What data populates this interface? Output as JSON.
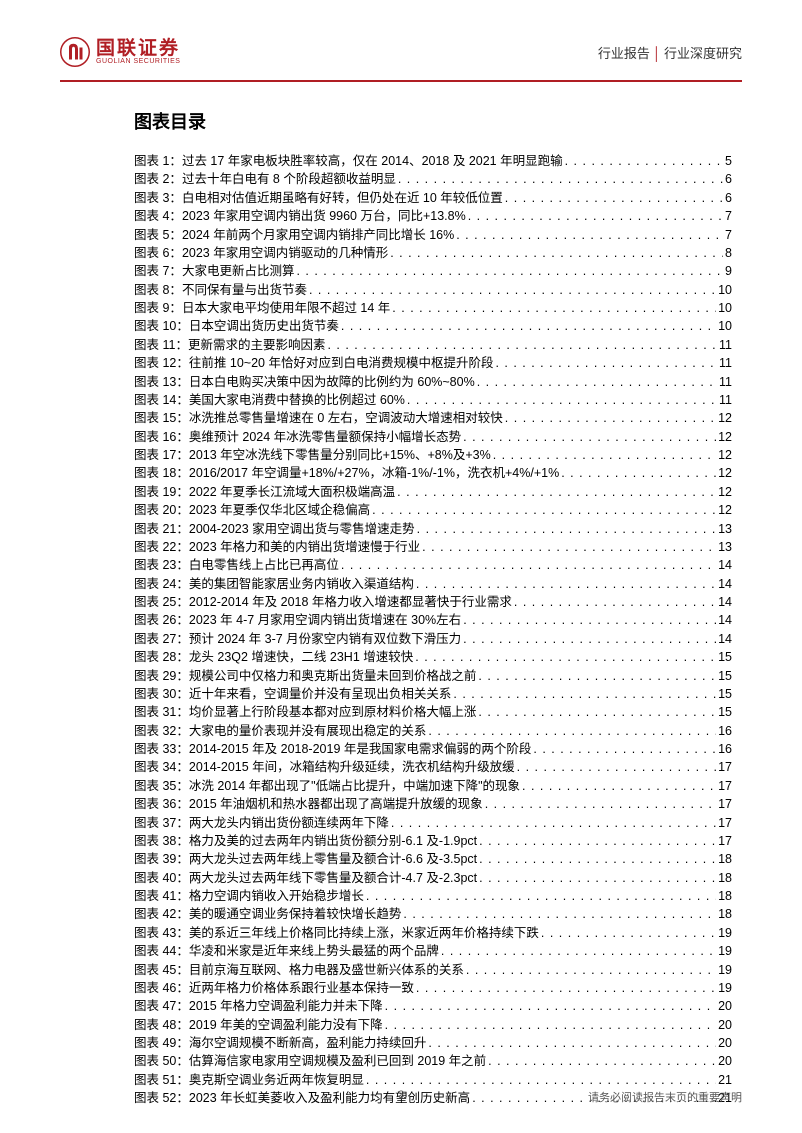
{
  "header": {
    "logo_cn": "国联证券",
    "logo_en": "GUOLIAN SECURITIES",
    "right_left": "行业报告",
    "right_right": "行业深度研究"
  },
  "section_title": "图表目录",
  "toc": [
    {
      "n": "1",
      "t": "过去 17 年家电板块胜率较高，仅在 2014、2018 及 2021 年明显跑输",
      "p": "5"
    },
    {
      "n": "2",
      "t": "过去十年白电有 8 个阶段超额收益明显",
      "p": "6"
    },
    {
      "n": "3",
      "t": "白电相对估值近期虽略有好转，但仍处在近 10 年较低位置",
      "p": "6"
    },
    {
      "n": "4",
      "t": "2023 年家用空调内销出货 9960 万台，同比+13.8%",
      "p": "7"
    },
    {
      "n": "5",
      "t": "2024 年前两个月家用空调内销排产同比增长 16%",
      "p": "7"
    },
    {
      "n": "6",
      "t": "2023 年家用空调内销驱动的几种情形",
      "p": "8"
    },
    {
      "n": "7",
      "t": "大家电更新占比测算",
      "p": "9"
    },
    {
      "n": "8",
      "t": "不同保有量与出货节奏",
      "p": "10"
    },
    {
      "n": "9",
      "t": "日本大家电平均使用年限不超过 14 年",
      "p": "10"
    },
    {
      "n": "10",
      "t": "日本空调出货历史出货节奏",
      "p": "10"
    },
    {
      "n": "11",
      "t": "更新需求的主要影响因素",
      "p": "11"
    },
    {
      "n": "12",
      "t": "往前推 10~20 年恰好对应到白电消费规模中枢提升阶段",
      "p": "11"
    },
    {
      "n": "13",
      "t": "日本白电购买决策中因为故障的比例约为 60%~80%",
      "p": "11"
    },
    {
      "n": "14",
      "t": "美国大家电消费中替换的比例超过 60%",
      "p": "11"
    },
    {
      "n": "15",
      "t": "冰洗推总零售量增速在 0 左右，空调波动大增速相对较快",
      "p": "12"
    },
    {
      "n": "16",
      "t": "奥维预计 2024 年冰洗零售量额保持小幅增长态势",
      "p": "12"
    },
    {
      "n": "17",
      "t": "2013 年空冰洗线下零售量分别同比+15%、+8%及+3%",
      "p": "12"
    },
    {
      "n": "18",
      "t": "2016/2017 年空调量+18%/+27%，冰箱-1%/-1%，洗衣机+4%/+1%",
      "p": "12"
    },
    {
      "n": "19",
      "t": "2022 年夏季长江流域大面积极端高温",
      "p": "12"
    },
    {
      "n": "20",
      "t": "2023 年夏季仅华北区域企稳偏高",
      "p": "12"
    },
    {
      "n": "21",
      "t": "2004-2023 家用空调出货与零售增速走势",
      "p": "13"
    },
    {
      "n": "22",
      "t": "2023 年格力和美的内销出货增速慢于行业",
      "p": "13"
    },
    {
      "n": "23",
      "t": "白电零售线上占比已再高位",
      "p": "14"
    },
    {
      "n": "24",
      "t": "美的集团智能家居业务内销收入渠道结构",
      "p": "14"
    },
    {
      "n": "25",
      "t": "2012-2014 年及 2018 年格力收入增速都显著快于行业需求",
      "p": "14"
    },
    {
      "n": "26",
      "t": "2023 年 4-7 月家用空调内销出货增速在 30%左右",
      "p": "14"
    },
    {
      "n": "27",
      "t": "预计 2024 年 3-7 月份家空内销有双位数下滑压力",
      "p": "14"
    },
    {
      "n": "28",
      "t": "龙头 23Q2 增速快，二线 23H1 增速较快",
      "p": "15"
    },
    {
      "n": "29",
      "t": "规模公司中仅格力和奥克斯出货量未回到价格战之前",
      "p": "15"
    },
    {
      "n": "30",
      "t": "近十年来看，空调量价并没有呈现出负相关关系",
      "p": "15"
    },
    {
      "n": "31",
      "t": "均价显著上行阶段基本都对应到原材料价格大幅上涨",
      "p": "15"
    },
    {
      "n": "32",
      "t": "大家电的量价表现并没有展现出稳定的关系",
      "p": "16"
    },
    {
      "n": "33",
      "t": "2014-2015 年及 2018-2019 年是我国家电需求偏弱的两个阶段",
      "p": "16"
    },
    {
      "n": "34",
      "t": "2014-2015 年间，冰箱结构升级延续，洗衣机结构升级放缓",
      "p": "17"
    },
    {
      "n": "35",
      "t": "冰洗 2014 年都出现了\"低端占比提升，中端加速下降\"的现象",
      "p": "17"
    },
    {
      "n": "36",
      "t": "2015 年油烟机和热水器都出现了高端提升放缓的现象",
      "p": "17"
    },
    {
      "n": "37",
      "t": "两大龙头内销出货份额连续两年下降",
      "p": "17"
    },
    {
      "n": "38",
      "t": "格力及美的过去两年内销出货份额分别-6.1 及-1.9pct",
      "p": "17"
    },
    {
      "n": "39",
      "t": "两大龙头过去两年线上零售量及额合计-6.6 及-3.5pct",
      "p": "18"
    },
    {
      "n": "40",
      "t": "两大龙头过去两年线下零售量及额合计-4.7 及-2.3pct",
      "p": "18"
    },
    {
      "n": "41",
      "t": "格力空调内销收入开始稳步增长",
      "p": "18"
    },
    {
      "n": "42",
      "t": "美的暖通空调业务保持着较快增长趋势",
      "p": "18"
    },
    {
      "n": "43",
      "t": "美的系近三年线上价格同比持续上涨，米家近两年价格持续下跌",
      "p": "19"
    },
    {
      "n": "44",
      "t": "华凌和米家是近年来线上势头最猛的两个品牌",
      "p": "19"
    },
    {
      "n": "45",
      "t": "目前京海互联网、格力电器及盛世新兴体系的关系",
      "p": "19"
    },
    {
      "n": "46",
      "t": "近两年格力价格体系跟行业基本保持一致",
      "p": "19"
    },
    {
      "n": "47",
      "t": "2015 年格力空调盈利能力并未下降",
      "p": "20"
    },
    {
      "n": "48",
      "t": "2019 年美的空调盈利能力没有下降",
      "p": "20"
    },
    {
      "n": "49",
      "t": "海尔空调规模不断新高，盈利能力持续回升",
      "p": "20"
    },
    {
      "n": "50",
      "t": "估算海信家电家用空调规模及盈利已回到 2019 年之前",
      "p": "20"
    },
    {
      "n": "51",
      "t": "奥克斯空调业务近两年恢复明显",
      "p": "21"
    },
    {
      "n": "52",
      "t": "2023 年长虹美菱收入及盈利能力均有望创历史新高",
      "p": "21"
    }
  ],
  "footer": {
    "page": "3",
    "note": "请务必阅读报告末页的重要声明"
  },
  "label_prefix": "图表 ",
  "label_suffix": "：",
  "colors": {
    "brand": "#b01e24",
    "text": "#000000",
    "footer": "#555555"
  }
}
